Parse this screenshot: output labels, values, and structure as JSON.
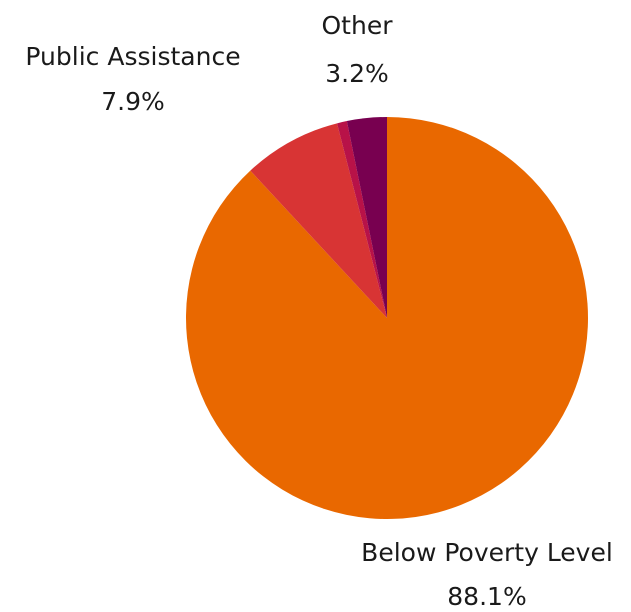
{
  "chart_data": {
    "type": "pie",
    "title": "",
    "start_angle_deg": 0,
    "direction": "clockwise",
    "legend": "none",
    "slices": [
      {
        "label": "Below Poverty Level",
        "value": 88.1,
        "value_text": "88.1%",
        "color": "#e96800"
      },
      {
        "label": "Public Assistance",
        "value": 7.9,
        "value_text": "7.9%",
        "color": "#d83434"
      },
      {
        "label": "",
        "value": 0.8,
        "value_text": "",
        "color": "#b81248"
      },
      {
        "label": "Other",
        "value": 3.2,
        "value_text": "3.2%",
        "color": "#780050"
      }
    ]
  }
}
